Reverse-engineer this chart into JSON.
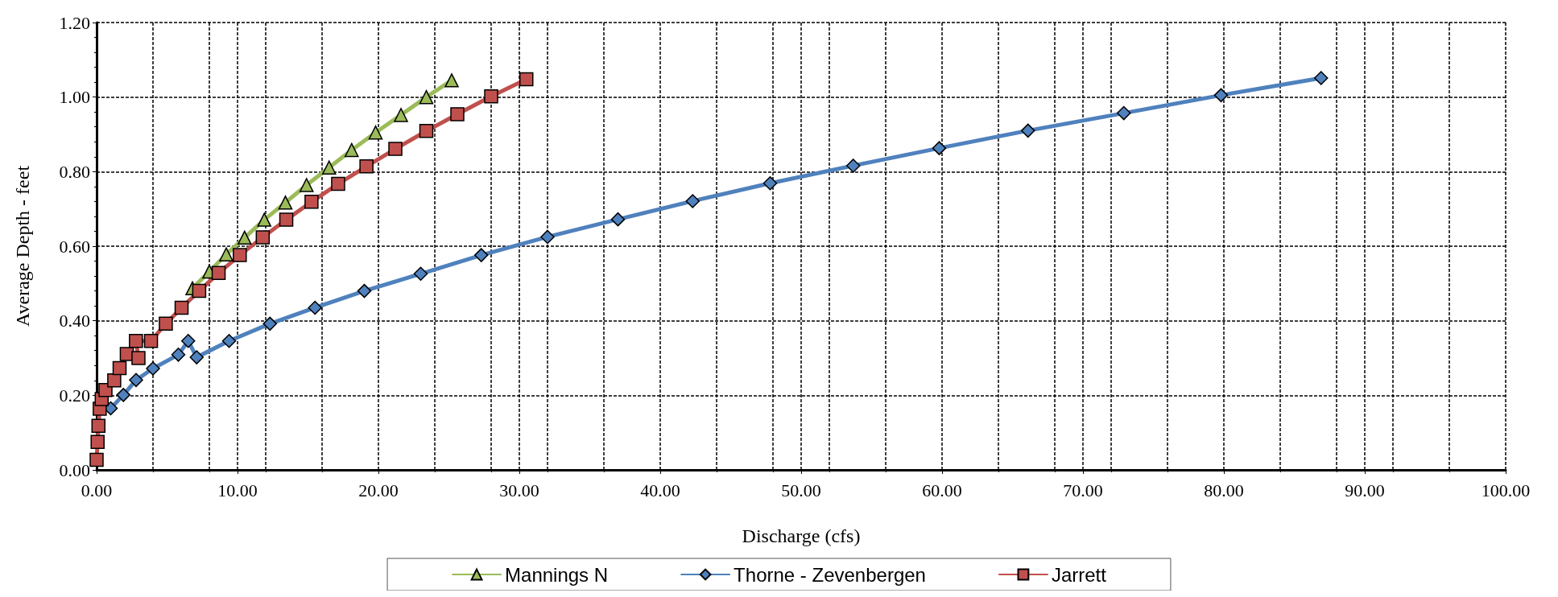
{
  "chart_data": {
    "type": "line",
    "xlabel": "Discharge (cfs)",
    "ylabel": "Average Depth - feet",
    "xlim": [
      0,
      100
    ],
    "ylim": [
      0,
      1.2
    ],
    "xticks": [
      {
        "value": 0,
        "label": "0.00"
      },
      {
        "value": 10,
        "label": "10.00"
      },
      {
        "value": 20,
        "label": "20.00"
      },
      {
        "value": 30,
        "label": "30.00"
      },
      {
        "value": 40,
        "label": "40.00"
      },
      {
        "value": 50,
        "label": "50.00"
      },
      {
        "value": 60,
        "label": "60.00"
      },
      {
        "value": 70,
        "label": "70.00"
      },
      {
        "value": 80,
        "label": "80.00"
      },
      {
        "value": 90,
        "label": "90.00"
      },
      {
        "value": 100,
        "label": "100.00"
      }
    ],
    "yticks": [
      {
        "value": 0,
        "label": "0.00"
      },
      {
        "value": 0.2,
        "label": "0.20"
      },
      {
        "value": 0.4,
        "label": "0.40"
      },
      {
        "value": 0.6,
        "label": "0.60"
      },
      {
        "value": 0.8,
        "label": "0.80"
      },
      {
        "value": 1,
        "label": "1.00"
      },
      {
        "value": 1.2,
        "label": "1.20"
      }
    ],
    "grid": true,
    "legend": "bottom",
    "line_style": "solid",
    "series": [
      {
        "name": "Mannings N",
        "color": "#9bbb59",
        "marker": "triangle",
        "x": [
          6.8,
          8.0,
          9.2,
          10.5,
          11.9,
          13.4,
          14.9,
          16.5,
          18.1,
          19.8,
          21.6,
          23.4,
          25.2
        ],
        "values": [
          0.487,
          0.532,
          0.578,
          0.623,
          0.671,
          0.717,
          0.764,
          0.811,
          0.858,
          0.905,
          0.952,
          1.0,
          1.045
        ]
      },
      {
        "name": "Thorne - Zevenbergen",
        "color": "#4f81bd",
        "marker": "diamond",
        "x": [
          1.0,
          1.9,
          2.8,
          4.0,
          5.8,
          6.5,
          7.1,
          9.4,
          12.3,
          15.5,
          19.0,
          23.0,
          27.3,
          32.0,
          37.0,
          42.3,
          47.8,
          53.7,
          59.8,
          66.1,
          72.9,
          79.8,
          86.9
        ],
        "values": [
          0.165,
          0.201,
          0.241,
          0.272,
          0.309,
          0.346,
          0.302,
          0.346,
          0.392,
          0.435,
          0.48,
          0.526,
          0.576,
          0.625,
          0.672,
          0.721,
          0.769,
          0.816,
          0.863,
          0.91,
          0.957,
          1.005,
          1.051
        ]
      },
      {
        "name": "Jarrett",
        "color": "#c0504d",
        "marker": "square",
        "x": [
          0.0,
          0.07,
          0.13,
          0.22,
          0.36,
          0.63,
          1.25,
          1.63,
          2.14,
          2.97,
          2.79,
          3.86,
          4.91,
          6.03,
          7.28,
          8.66,
          10.16,
          11.79,
          13.46,
          15.25,
          17.14,
          19.15,
          21.2,
          23.4,
          25.6,
          28.0,
          30.5
        ],
        "values": [
          0.027,
          0.075,
          0.118,
          0.164,
          0.19,
          0.214,
          0.24,
          0.273,
          0.311,
          0.3,
          0.346,
          0.346,
          0.392,
          0.435,
          0.48,
          0.528,
          0.576,
          0.624,
          0.671,
          0.719,
          0.767,
          0.814,
          0.861,
          0.909,
          0.954,
          1.002,
          1.048
        ]
      }
    ]
  }
}
